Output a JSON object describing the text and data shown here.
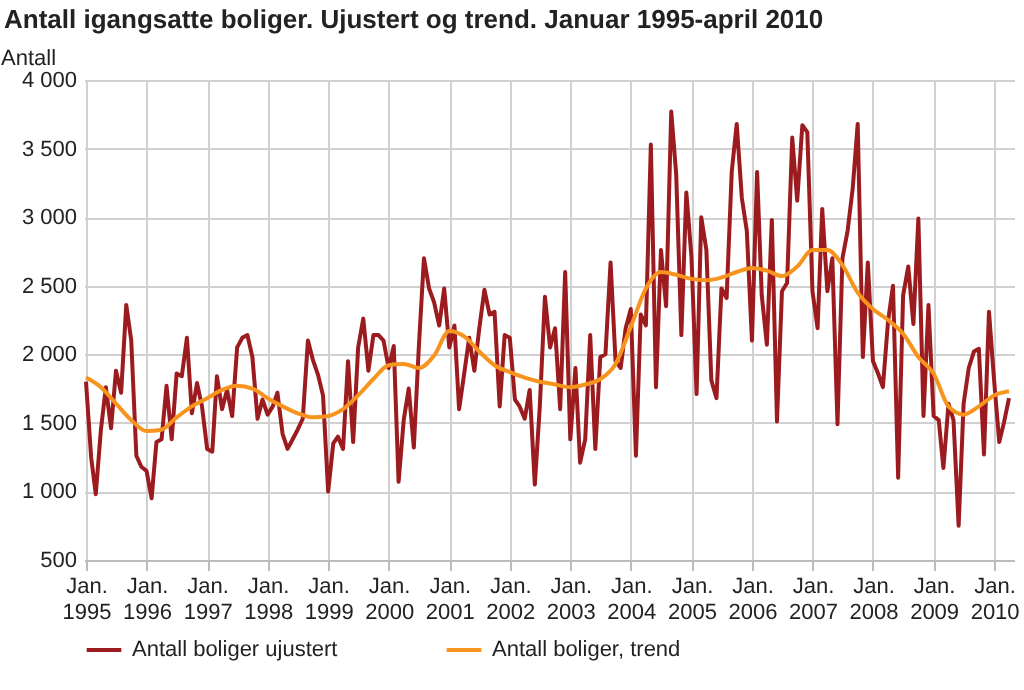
{
  "chart_data": {
    "type": "line",
    "title": "Antall igangsatte boliger. Ujustert og trend. Januar 1995-april 2010",
    "ylabel": "Antall",
    "xlim": [
      "1994-12-20",
      "2010-05"
    ],
    "ylim": [
      500,
      4000
    ],
    "xticks": [
      {
        "value": "1995-01",
        "label": "Jan. 1995"
      },
      {
        "value": "1996-01",
        "label": "Jan. 1996"
      },
      {
        "value": "1997-01",
        "label": "Jan. 1997"
      },
      {
        "value": "1998-01",
        "label": "Jan. 1998"
      },
      {
        "value": "1999-01",
        "label": "Jan. 1999"
      },
      {
        "value": "2000-01",
        "label": "Jan. 2000"
      },
      {
        "value": "2001-01",
        "label": "Jan. 2001"
      },
      {
        "value": "2002-01",
        "label": "Jan. 2002"
      },
      {
        "value": "2003-01",
        "label": "Jan. 2003"
      },
      {
        "value": "2004-01",
        "label": "Jan. 2004"
      },
      {
        "value": "2005-01",
        "label": "Jan. 2005"
      },
      {
        "value": "2006-01",
        "label": "Jan. 2006"
      },
      {
        "value": "2007-01",
        "label": "Jan. 2007"
      },
      {
        "value": "2008-01",
        "label": "Jan. 2008"
      },
      {
        "value": "2009-01",
        "label": "Jan. 2009"
      },
      {
        "value": "2010-01",
        "label": "Jan. 2010"
      }
    ],
    "yticks": [
      500,
      {
        "value": 1000,
        "label": "1 000"
      },
      {
        "value": 1500,
        "label": "1 500"
      },
      {
        "value": 2000,
        "label": "2 000"
      },
      {
        "value": 2500,
        "label": "2 500"
      },
      {
        "value": 3000,
        "label": "3 000"
      },
      {
        "value": 3500,
        "label": "3 500"
      },
      {
        "value": 4000,
        "label": "4 000"
      }
    ],
    "grid": true,
    "legend": "bottom",
    "series": [
      {
        "name": "Antall boliger ujustert",
        "color": "#9b1b1f",
        "x": [
          "1995-01",
          "1995-02",
          "1995-03",
          "1995-04",
          "1995-05",
          "1995-06",
          "1995-07",
          "1995-08",
          "1995-09",
          "1995-10",
          "1995-11",
          "1995-12",
          "1996-01",
          "1996-02",
          "1996-03",
          "1996-04",
          "1996-05",
          "1996-06",
          "1996-07",
          "1996-08",
          "1996-09",
          "1996-10",
          "1996-11",
          "1996-12",
          "1997-01",
          "1997-02",
          "1997-03",
          "1997-04",
          "1997-05",
          "1997-06",
          "1997-07",
          "1997-08",
          "1997-09",
          "1997-10",
          "1997-11",
          "1997-12",
          "1998-01",
          "1998-02",
          "1998-03",
          "1998-04",
          "1998-05",
          "1998-06",
          "1998-07",
          "1998-08",
          "1998-09",
          "1998-10",
          "1998-11",
          "1998-12",
          "1999-01",
          "1999-02",
          "1999-03",
          "1999-04",
          "1999-05",
          "1999-06",
          "1999-07",
          "1999-08",
          "1999-09",
          "1999-10",
          "1999-11",
          "1999-12",
          "2000-01",
          "2000-02",
          "2000-03",
          "2000-04",
          "2000-05",
          "2000-06",
          "2000-07",
          "2000-08",
          "2000-09",
          "2000-10",
          "2000-11",
          "2000-12",
          "2001-01",
          "2001-02",
          "2001-03",
          "2001-04",
          "2001-05",
          "2001-06",
          "2001-07",
          "2001-08",
          "2001-09",
          "2001-10",
          "2001-11",
          "2001-12",
          "2002-01",
          "2002-02",
          "2002-03",
          "2002-04",
          "2002-05",
          "2002-06",
          "2002-07",
          "2002-08",
          "2002-09",
          "2002-10",
          "2002-11",
          "2002-12",
          "2003-01",
          "2003-02",
          "2003-03",
          "2003-04",
          "2003-05",
          "2003-06",
          "2003-07",
          "2003-08",
          "2003-09",
          "2003-10",
          "2003-11",
          "2003-12",
          "2004-01",
          "2004-02",
          "2004-03",
          "2004-04",
          "2004-05",
          "2004-06",
          "2004-07",
          "2004-08",
          "2004-09",
          "2004-10",
          "2004-11",
          "2004-12",
          "2005-01",
          "2005-02",
          "2005-03",
          "2005-04",
          "2005-05",
          "2005-06",
          "2005-07",
          "2005-08",
          "2005-09",
          "2005-10",
          "2005-11",
          "2005-12",
          "2006-01",
          "2006-02",
          "2006-03",
          "2006-04",
          "2006-05",
          "2006-06",
          "2006-07",
          "2006-08",
          "2006-09",
          "2006-10",
          "2006-11",
          "2006-12",
          "2007-01",
          "2007-02",
          "2007-03",
          "2007-04",
          "2007-05",
          "2007-06",
          "2007-07",
          "2007-08",
          "2007-09",
          "2007-10",
          "2007-11",
          "2007-12",
          "2008-01",
          "2008-02",
          "2008-03",
          "2008-04",
          "2008-05",
          "2008-06",
          "2008-07",
          "2008-08",
          "2008-09",
          "2008-10",
          "2008-11",
          "2008-12",
          "2009-01",
          "2009-02",
          "2009-03",
          "2009-04",
          "2009-05",
          "2009-06",
          "2009-07",
          "2009-08",
          "2009-09",
          "2009-10",
          "2009-11",
          "2009-12",
          "2010-01",
          "2010-02",
          "2010-03",
          "2010-04"
        ],
        "values": [
          1800,
          1250,
          980,
          1450,
          1760,
          1460,
          1880,
          1720,
          2360,
          2100,
          1260,
          1180,
          1150,
          950,
          1360,
          1380,
          1770,
          1380,
          1860,
          1840,
          2120,
          1570,
          1790,
          1620,
          1310,
          1290,
          1840,
          1600,
          1740,
          1550,
          2050,
          2120,
          2140,
          1980,
          1530,
          1670,
          1560,
          1620,
          1720,
          1420,
          1310,
          1380,
          1450,
          1530,
          2100,
          1960,
          1850,
          1700,
          1000,
          1350,
          1400,
          1310,
          1950,
          1360,
          2050,
          2260,
          1880,
          2140,
          2140,
          2100,
          1900,
          2060,
          1070,
          1520,
          1750,
          1320,
          2050,
          2700,
          2480,
          2380,
          2210,
          2480,
          2050,
          2210,
          1600,
          1860,
          2120,
          1880,
          2190,
          2470,
          2290,
          2310,
          1620,
          2140,
          2120,
          1670,
          1620,
          1530,
          1740,
          1050,
          1620,
          2420,
          2050,
          2190,
          1600,
          2600,
          1380,
          1900,
          1210,
          1380,
          2140,
          1310,
          1980,
          2000,
          2670,
          1950,
          1900,
          2190,
          2330,
          1260,
          2290,
          2210,
          3530,
          1760,
          2760,
          2350,
          3770,
          3310,
          2140,
          3180,
          2710,
          1710,
          3000,
          2760,
          1810,
          1680,
          2480,
          2410,
          3330,
          3680,
          3140,
          2900,
          2100,
          3330,
          2430,
          2070,
          2980,
          1510,
          2460,
          2520,
          3580,
          3120,
          3670,
          3620,
          2460,
          2190,
          3060,
          2460,
          2700,
          1490,
          2700,
          2900,
          3210,
          3680,
          1980,
          2670,
          1950,
          1860,
          1760,
          2240,
          2500,
          1100,
          2430,
          2640,
          2220,
          2990,
          1550,
          2360,
          1550,
          1520,
          1170,
          1640,
          1520,
          750,
          1640,
          1900,
          2020,
          2040,
          1270,
          2310,
          1810,
          1360,
          1500,
          1680
        ]
      },
      {
        "name": "Antall boliger, trend",
        "color": "#f7941d",
        "x": [
          "1995-01",
          "1995-04",
          "1995-07",
          "1995-10",
          "1996-01",
          "1996-04",
          "1996-07",
          "1996-10",
          "1997-01",
          "1997-04",
          "1997-07",
          "1997-10",
          "1998-01",
          "1998-04",
          "1998-07",
          "1998-10",
          "1999-01",
          "1999-04",
          "1999-07",
          "1999-10",
          "2000-01",
          "2000-04",
          "2000-07",
          "2000-10",
          "2001-01",
          "2001-04",
          "2001-07",
          "2001-10",
          "2002-01",
          "2002-04",
          "2002-07",
          "2002-10",
          "2003-01",
          "2003-04",
          "2003-07",
          "2003-10",
          "2004-01",
          "2004-04",
          "2004-07",
          "2004-10",
          "2005-01",
          "2005-04",
          "2005-07",
          "2005-10",
          "2006-01",
          "2006-04",
          "2006-07",
          "2006-10",
          "2007-01",
          "2007-04",
          "2007-07",
          "2007-10",
          "2008-01",
          "2008-04",
          "2008-07",
          "2008-10",
          "2009-01",
          "2009-04",
          "2009-07",
          "2009-10",
          "2010-01",
          "2010-04"
        ],
        "values": [
          1830,
          1760,
          1640,
          1520,
          1440,
          1450,
          1540,
          1620,
          1680,
          1740,
          1770,
          1750,
          1680,
          1620,
          1570,
          1540,
          1550,
          1600,
          1700,
          1820,
          1920,
          1930,
          1900,
          1990,
          2170,
          2130,
          2020,
          1920,
          1870,
          1830,
          1800,
          1780,
          1760,
          1780,
          1820,
          1930,
          2200,
          2480,
          2600,
          2580,
          2550,
          2540,
          2560,
          2600,
          2630,
          2610,
          2570,
          2640,
          2760,
          2760,
          2650,
          2450,
          2330,
          2250,
          2150,
          1980,
          1860,
          1620,
          1560,
          1620,
          1700,
          1730
        ]
      }
    ]
  }
}
